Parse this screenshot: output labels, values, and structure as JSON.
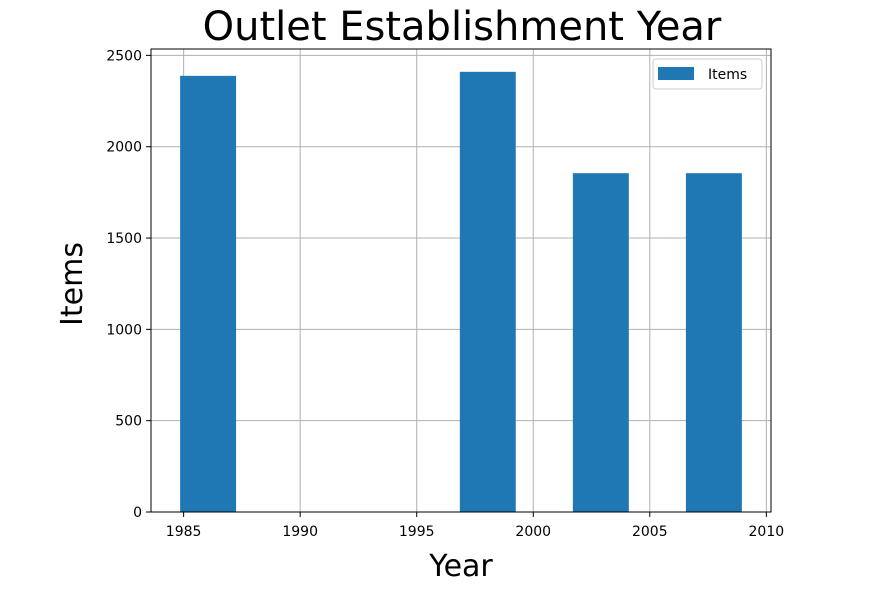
{
  "chart_data": {
    "type": "bar",
    "title": "Outlet Establishment Year",
    "xlabel": "Year",
    "ylabel": "Items",
    "bars": [
      {
        "x_start": 1984.85,
        "x_end": 1987.25,
        "value": 2388
      },
      {
        "x_start": 1996.85,
        "x_end": 1999.25,
        "value": 2410
      },
      {
        "x_start": 2001.7,
        "x_end": 2004.1,
        "value": 1855
      },
      {
        "x_start": 2006.55,
        "x_end": 2008.95,
        "value": 1855
      }
    ],
    "xlim": [
      1983.6,
      2010.2
    ],
    "ylim": [
      0,
      2535
    ],
    "xticks": [
      1985,
      1990,
      1995,
      2000,
      2005,
      2010
    ],
    "yticks": [
      0,
      500,
      1000,
      1500,
      2000,
      2500
    ],
    "series_name": "Items",
    "bar_color": "#1f77b4",
    "grid": true,
    "legend_position": "top-right"
  }
}
